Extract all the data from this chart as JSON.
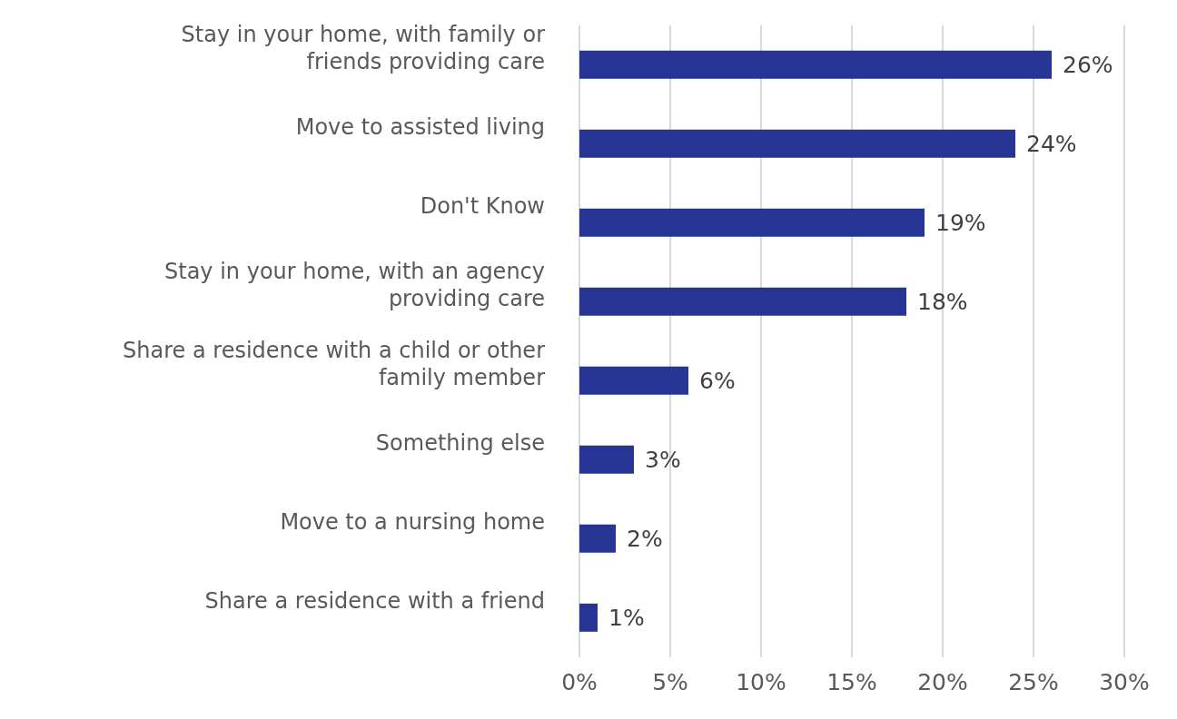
{
  "chart_data": {
    "type": "bar",
    "orientation": "horizontal",
    "categories": [
      "Stay in your home, with family or friends providing care",
      "Move to assisted living",
      "Don't Know",
      "Stay in your home, with an agency providing care",
      "Share a residence with a child or other family member",
      "Something else",
      "Move to a nursing home",
      "Share a residence with a friend"
    ],
    "values": [
      26,
      24,
      19,
      18,
      6,
      3,
      2,
      1
    ],
    "value_labels": [
      "26%",
      "24%",
      "19%",
      "18%",
      "6%",
      "3%",
      "2%",
      "1%"
    ],
    "color": "#263594",
    "xlim": [
      0,
      30
    ],
    "xticks": [
      {
        "value": 0,
        "label": "0%"
      },
      {
        "value": 5,
        "label": "5%"
      },
      {
        "value": 10,
        "label": "10%"
      },
      {
        "value": 15,
        "label": "15%"
      },
      {
        "value": 20,
        "label": "20%"
      },
      {
        "value": 25,
        "label": "25%"
      },
      {
        "value": 30,
        "label": "30%"
      }
    ],
    "grid": "x"
  }
}
